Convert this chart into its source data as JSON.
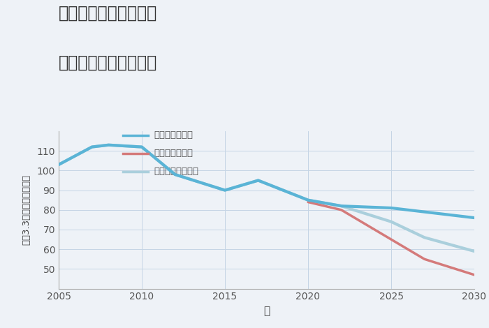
{
  "title_line1": "大阪府和泉市今福町の",
  "title_line2": "中古戸建ての価格推移",
  "xlabel": "年",
  "ylabel": "坪（3.3㎡）単価（万円）",
  "background_color": "#eef2f7",
  "plot_bg_color": "#eef2f7",
  "ylim": [
    40,
    120
  ],
  "xlim": [
    2005,
    2030
  ],
  "yticks": [
    50,
    60,
    70,
    80,
    90,
    100,
    110
  ],
  "xticks": [
    2005,
    2010,
    2015,
    2020,
    2025,
    2030
  ],
  "good_scenario": {
    "label": "グッドシナリオ",
    "color": "#5ab4d6",
    "linewidth": 3.0,
    "x": [
      2005,
      2007,
      2008,
      2010,
      2012,
      2015,
      2017,
      2020,
      2022,
      2025,
      2027,
      2030
    ],
    "y": [
      103,
      112,
      113,
      112,
      98,
      90,
      95,
      85,
      82,
      81,
      79,
      76
    ]
  },
  "bad_scenario": {
    "label": "バッドシナリオ",
    "color": "#d47a7a",
    "linewidth": 2.5,
    "x": [
      2020,
      2022,
      2025,
      2027,
      2030
    ],
    "y": [
      84,
      80,
      65,
      55,
      47
    ]
  },
  "normal_scenario": {
    "label": "ノーマルシナリオ",
    "color": "#aacfdc",
    "linewidth": 3.0,
    "x": [
      2005,
      2007,
      2008,
      2010,
      2012,
      2015,
      2017,
      2020,
      2022,
      2025,
      2027,
      2030
    ],
    "y": [
      103,
      112,
      113,
      112,
      98,
      90,
      95,
      85,
      82,
      74,
      66,
      59
    ]
  },
  "legend_items": [
    {
      "label": "グッドシナリオ",
      "color": "#5ab4d6"
    },
    {
      "label": "バッドシナリオ",
      "color": "#d47a7a"
    },
    {
      "label": "ノーマルシナリオ",
      "color": "#aacfdc"
    }
  ]
}
